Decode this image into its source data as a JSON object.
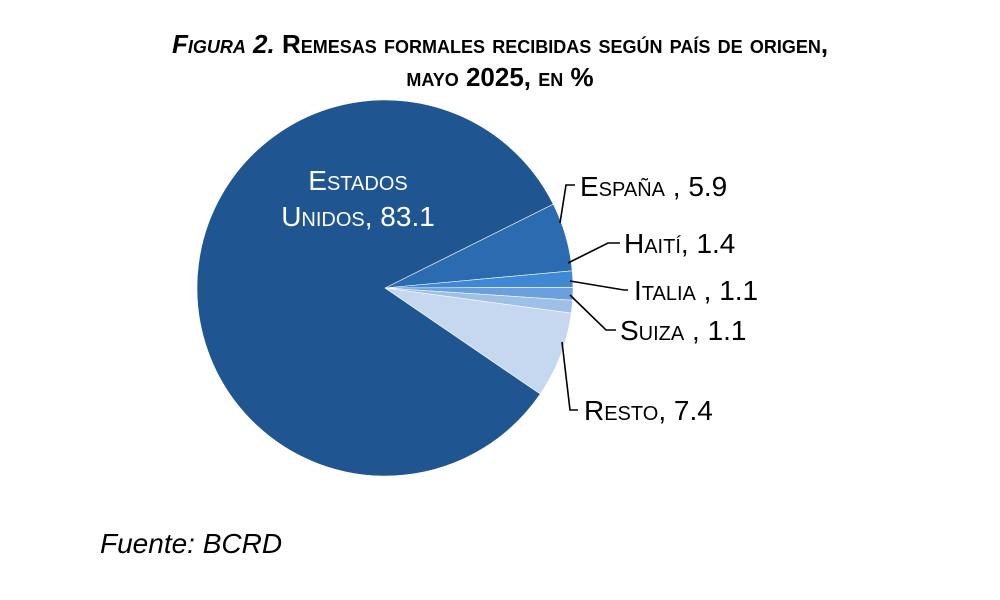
{
  "title_figure": "Figura 2.",
  "title_text": "Remesas formales recibidas según país de origen,",
  "title_line2": "mayo 2025, en %",
  "source": "Fuente: BCRD",
  "colors": {
    "estados_unidos": "#1f5591",
    "espana": "#2b6cb0",
    "haiti": "#3f88d4",
    "italia": "#6ba0dc",
    "suiza": "#9ec0e8",
    "resto": "#c6d8f0",
    "leader": "#000000"
  },
  "chart_data": {
    "type": "pie",
    "title": "Figura 2. Remesas formales recibidas según país de origen, mayo 2025, en %",
    "slices": [
      {
        "label": "Estados Unidos, 83.1",
        "name": "Estados Unidos",
        "value": 83.1
      },
      {
        "label": "España , 5.9",
        "name": "España",
        "value": 5.9
      },
      {
        "label": "Haití, 1.4",
        "name": "Haití",
        "value": 1.4
      },
      {
        "label": "Italia , 1.1",
        "name": "Italia",
        "value": 1.1
      },
      {
        "label": "Suiza , 1.1",
        "name": "Suiza",
        "value": 1.1
      },
      {
        "label": "Resto, 7.4",
        "name": "Resto",
        "value": 7.4
      }
    ],
    "inside_label_lines": [
      "Estados",
      "Unidos, 83.1"
    ]
  }
}
